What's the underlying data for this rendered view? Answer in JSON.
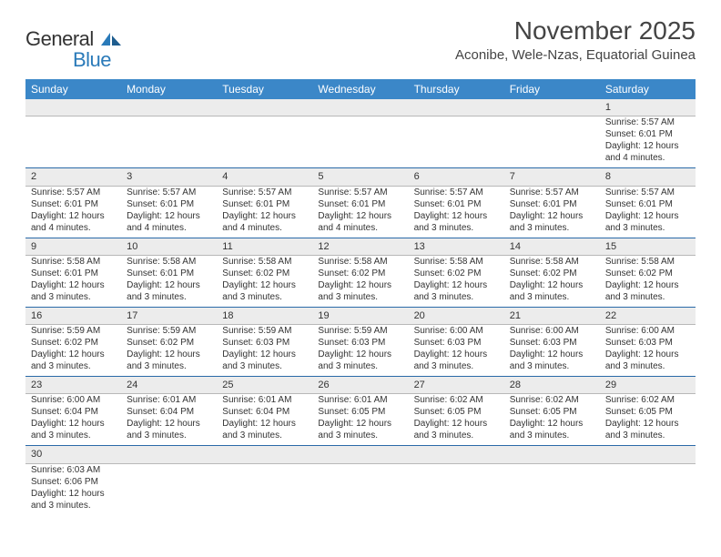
{
  "logo": {
    "textGeneral": "General",
    "textBlue": "Blue"
  },
  "header": {
    "title": "November 2025",
    "location": "Aconibe, Wele-Nzas, Equatorial Guinea"
  },
  "colors": {
    "headerBg": "#3b87c8",
    "rowDivider": "#2a6aa8",
    "dayNumBg": "#ececec",
    "dayNumDivider": "#b8b8b8",
    "logoBlue": "#2a7ab9",
    "bodyText": "#333333"
  },
  "weekdays": [
    "Sunday",
    "Monday",
    "Tuesday",
    "Wednesday",
    "Thursday",
    "Friday",
    "Saturday"
  ],
  "weeks": [
    {
      "nums": [
        "",
        "",
        "",
        "",
        "",
        "",
        "1"
      ],
      "cells": [
        null,
        null,
        null,
        null,
        null,
        null,
        {
          "sunrise": "Sunrise: 5:57 AM",
          "sunset": "Sunset: 6:01 PM",
          "d1": "Daylight: 12 hours",
          "d2": "and 4 minutes."
        }
      ]
    },
    {
      "nums": [
        "2",
        "3",
        "4",
        "5",
        "6",
        "7",
        "8"
      ],
      "cells": [
        {
          "sunrise": "Sunrise: 5:57 AM",
          "sunset": "Sunset: 6:01 PM",
          "d1": "Daylight: 12 hours",
          "d2": "and 4 minutes."
        },
        {
          "sunrise": "Sunrise: 5:57 AM",
          "sunset": "Sunset: 6:01 PM",
          "d1": "Daylight: 12 hours",
          "d2": "and 4 minutes."
        },
        {
          "sunrise": "Sunrise: 5:57 AM",
          "sunset": "Sunset: 6:01 PM",
          "d1": "Daylight: 12 hours",
          "d2": "and 4 minutes."
        },
        {
          "sunrise": "Sunrise: 5:57 AM",
          "sunset": "Sunset: 6:01 PM",
          "d1": "Daylight: 12 hours",
          "d2": "and 4 minutes."
        },
        {
          "sunrise": "Sunrise: 5:57 AM",
          "sunset": "Sunset: 6:01 PM",
          "d1": "Daylight: 12 hours",
          "d2": "and 3 minutes."
        },
        {
          "sunrise": "Sunrise: 5:57 AM",
          "sunset": "Sunset: 6:01 PM",
          "d1": "Daylight: 12 hours",
          "d2": "and 3 minutes."
        },
        {
          "sunrise": "Sunrise: 5:57 AM",
          "sunset": "Sunset: 6:01 PM",
          "d1": "Daylight: 12 hours",
          "d2": "and 3 minutes."
        }
      ]
    },
    {
      "nums": [
        "9",
        "10",
        "11",
        "12",
        "13",
        "14",
        "15"
      ],
      "cells": [
        {
          "sunrise": "Sunrise: 5:58 AM",
          "sunset": "Sunset: 6:01 PM",
          "d1": "Daylight: 12 hours",
          "d2": "and 3 minutes."
        },
        {
          "sunrise": "Sunrise: 5:58 AM",
          "sunset": "Sunset: 6:01 PM",
          "d1": "Daylight: 12 hours",
          "d2": "and 3 minutes."
        },
        {
          "sunrise": "Sunrise: 5:58 AM",
          "sunset": "Sunset: 6:02 PM",
          "d1": "Daylight: 12 hours",
          "d2": "and 3 minutes."
        },
        {
          "sunrise": "Sunrise: 5:58 AM",
          "sunset": "Sunset: 6:02 PM",
          "d1": "Daylight: 12 hours",
          "d2": "and 3 minutes."
        },
        {
          "sunrise": "Sunrise: 5:58 AM",
          "sunset": "Sunset: 6:02 PM",
          "d1": "Daylight: 12 hours",
          "d2": "and 3 minutes."
        },
        {
          "sunrise": "Sunrise: 5:58 AM",
          "sunset": "Sunset: 6:02 PM",
          "d1": "Daylight: 12 hours",
          "d2": "and 3 minutes."
        },
        {
          "sunrise": "Sunrise: 5:58 AM",
          "sunset": "Sunset: 6:02 PM",
          "d1": "Daylight: 12 hours",
          "d2": "and 3 minutes."
        }
      ]
    },
    {
      "nums": [
        "16",
        "17",
        "18",
        "19",
        "20",
        "21",
        "22"
      ],
      "cells": [
        {
          "sunrise": "Sunrise: 5:59 AM",
          "sunset": "Sunset: 6:02 PM",
          "d1": "Daylight: 12 hours",
          "d2": "and 3 minutes."
        },
        {
          "sunrise": "Sunrise: 5:59 AM",
          "sunset": "Sunset: 6:02 PM",
          "d1": "Daylight: 12 hours",
          "d2": "and 3 minutes."
        },
        {
          "sunrise": "Sunrise: 5:59 AM",
          "sunset": "Sunset: 6:03 PM",
          "d1": "Daylight: 12 hours",
          "d2": "and 3 minutes."
        },
        {
          "sunrise": "Sunrise: 5:59 AM",
          "sunset": "Sunset: 6:03 PM",
          "d1": "Daylight: 12 hours",
          "d2": "and 3 minutes."
        },
        {
          "sunrise": "Sunrise: 6:00 AM",
          "sunset": "Sunset: 6:03 PM",
          "d1": "Daylight: 12 hours",
          "d2": "and 3 minutes."
        },
        {
          "sunrise": "Sunrise: 6:00 AM",
          "sunset": "Sunset: 6:03 PM",
          "d1": "Daylight: 12 hours",
          "d2": "and 3 minutes."
        },
        {
          "sunrise": "Sunrise: 6:00 AM",
          "sunset": "Sunset: 6:03 PM",
          "d1": "Daylight: 12 hours",
          "d2": "and 3 minutes."
        }
      ]
    },
    {
      "nums": [
        "23",
        "24",
        "25",
        "26",
        "27",
        "28",
        "29"
      ],
      "cells": [
        {
          "sunrise": "Sunrise: 6:00 AM",
          "sunset": "Sunset: 6:04 PM",
          "d1": "Daylight: 12 hours",
          "d2": "and 3 minutes."
        },
        {
          "sunrise": "Sunrise: 6:01 AM",
          "sunset": "Sunset: 6:04 PM",
          "d1": "Daylight: 12 hours",
          "d2": "and 3 minutes."
        },
        {
          "sunrise": "Sunrise: 6:01 AM",
          "sunset": "Sunset: 6:04 PM",
          "d1": "Daylight: 12 hours",
          "d2": "and 3 minutes."
        },
        {
          "sunrise": "Sunrise: 6:01 AM",
          "sunset": "Sunset: 6:05 PM",
          "d1": "Daylight: 12 hours",
          "d2": "and 3 minutes."
        },
        {
          "sunrise": "Sunrise: 6:02 AM",
          "sunset": "Sunset: 6:05 PM",
          "d1": "Daylight: 12 hours",
          "d2": "and 3 minutes."
        },
        {
          "sunrise": "Sunrise: 6:02 AM",
          "sunset": "Sunset: 6:05 PM",
          "d1": "Daylight: 12 hours",
          "d2": "and 3 minutes."
        },
        {
          "sunrise": "Sunrise: 6:02 AM",
          "sunset": "Sunset: 6:05 PM",
          "d1": "Daylight: 12 hours",
          "d2": "and 3 minutes."
        }
      ]
    },
    {
      "nums": [
        "30",
        "",
        "",
        "",
        "",
        "",
        ""
      ],
      "cells": [
        {
          "sunrise": "Sunrise: 6:03 AM",
          "sunset": "Sunset: 6:06 PM",
          "d1": "Daylight: 12 hours",
          "d2": "and 3 minutes."
        },
        null,
        null,
        null,
        null,
        null,
        null
      ]
    }
  ]
}
